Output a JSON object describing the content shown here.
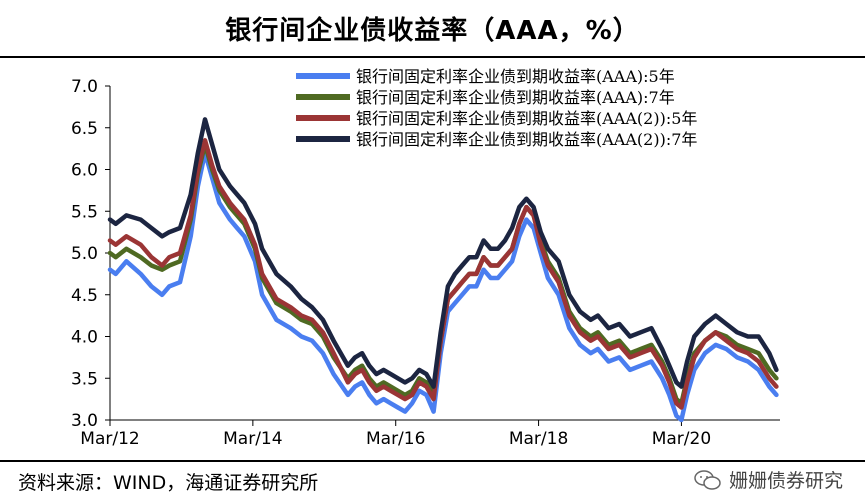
{
  "title": "银行间企业债收益率（AAA，%）",
  "source": "资料来源：WIND，海通证券研究所",
  "watermark": "姗姗债券研究",
  "chart_data": {
    "type": "line",
    "ylim": [
      3.0,
      7.0
    ],
    "yticks": [
      "7.0",
      "6.5",
      "6.0",
      "5.5",
      "5.0",
      "4.5",
      "4.0",
      "3.5",
      "3.0"
    ],
    "xticks": [
      "Mar/12",
      "Mar/14",
      "Mar/16",
      "Mar/18",
      "Mar/20"
    ],
    "xtick_positions": [
      2012.17,
      2014.17,
      2016.17,
      2018.17,
      2020.17
    ],
    "xlim": [
      2012.17,
      2021.55
    ],
    "legend_position": "top-right",
    "series": [
      {
        "name": "银行间固定利率企业债到期收益率(AAA):5年",
        "color": "#4a7ef0",
        "x": [
          2012.17,
          2012.25,
          2012.4,
          2012.6,
          2012.75,
          2012.9,
          2013.0,
          2013.15,
          2013.3,
          2013.4,
          2013.5,
          2013.6,
          2013.7,
          2013.85,
          2013.95,
          2014.05,
          2014.2,
          2014.3,
          2014.5,
          2014.7,
          2014.85,
          2015.0,
          2015.15,
          2015.3,
          2015.5,
          2015.6,
          2015.7,
          2015.8,
          2015.9,
          2016.0,
          2016.1,
          2016.2,
          2016.3,
          2016.4,
          2016.5,
          2016.6,
          2016.7,
          2016.8,
          2016.9,
          2017.0,
          2017.1,
          2017.2,
          2017.3,
          2017.4,
          2017.5,
          2017.6,
          2017.7,
          2017.8,
          2017.9,
          2018.0,
          2018.1,
          2018.2,
          2018.3,
          2018.45,
          2018.6,
          2018.75,
          2018.9,
          2019.0,
          2019.15,
          2019.3,
          2019.45,
          2019.6,
          2019.75,
          2019.9,
          2020.0,
          2020.1,
          2020.17,
          2020.25,
          2020.35,
          2020.5,
          2020.65,
          2020.8,
          2020.95,
          2021.1,
          2021.25,
          2021.4,
          2021.5
        ],
        "values": [
          4.8,
          4.75,
          4.9,
          4.75,
          4.6,
          4.5,
          4.6,
          4.65,
          5.2,
          5.8,
          6.2,
          5.9,
          5.6,
          5.4,
          5.3,
          5.2,
          4.9,
          4.5,
          4.2,
          4.1,
          4.0,
          3.95,
          3.8,
          3.55,
          3.3,
          3.4,
          3.45,
          3.3,
          3.2,
          3.25,
          3.2,
          3.15,
          3.1,
          3.2,
          3.35,
          3.3,
          3.1,
          3.8,
          4.3,
          4.4,
          4.5,
          4.6,
          4.6,
          4.8,
          4.7,
          4.7,
          4.8,
          4.9,
          5.2,
          5.4,
          5.3,
          5.0,
          4.7,
          4.5,
          4.1,
          3.9,
          3.8,
          3.85,
          3.7,
          3.75,
          3.6,
          3.65,
          3.7,
          3.5,
          3.3,
          3.05,
          3.0,
          3.3,
          3.6,
          3.8,
          3.9,
          3.85,
          3.75,
          3.7,
          3.6,
          3.4,
          3.3
        ]
      },
      {
        "name": "银行间固定利率企业债到期收益率(AAA):7年",
        "color": "#4f6a22",
        "x": [
          2012.17,
          2012.25,
          2012.4,
          2012.6,
          2012.75,
          2012.9,
          2013.0,
          2013.15,
          2013.3,
          2013.4,
          2013.5,
          2013.6,
          2013.7,
          2013.85,
          2013.95,
          2014.05,
          2014.2,
          2014.3,
          2014.5,
          2014.7,
          2014.85,
          2015.0,
          2015.15,
          2015.3,
          2015.5,
          2015.6,
          2015.7,
          2015.8,
          2015.9,
          2016.0,
          2016.1,
          2016.2,
          2016.3,
          2016.4,
          2016.5,
          2016.6,
          2016.7,
          2016.8,
          2016.9,
          2017.0,
          2017.1,
          2017.2,
          2017.3,
          2017.4,
          2017.5,
          2017.6,
          2017.7,
          2017.8,
          2017.9,
          2018.0,
          2018.1,
          2018.2,
          2018.3,
          2018.45,
          2018.6,
          2018.75,
          2018.9,
          2019.0,
          2019.15,
          2019.3,
          2019.45,
          2019.6,
          2019.75,
          2019.9,
          2020.0,
          2020.1,
          2020.17,
          2020.25,
          2020.35,
          2020.5,
          2020.65,
          2020.8,
          2020.95,
          2021.1,
          2021.25,
          2021.4,
          2021.5
        ],
        "values": [
          5.0,
          4.95,
          5.05,
          4.95,
          4.85,
          4.8,
          4.85,
          4.9,
          5.4,
          5.95,
          6.3,
          6.0,
          5.75,
          5.55,
          5.45,
          5.35,
          5.05,
          4.7,
          4.4,
          4.3,
          4.2,
          4.15,
          4.0,
          3.75,
          3.5,
          3.6,
          3.65,
          3.5,
          3.4,
          3.45,
          3.4,
          3.35,
          3.3,
          3.35,
          3.5,
          3.45,
          3.3,
          3.95,
          4.45,
          4.55,
          4.65,
          4.75,
          4.75,
          4.95,
          4.85,
          4.85,
          4.95,
          5.05,
          5.35,
          5.55,
          5.45,
          5.15,
          4.9,
          4.7,
          4.3,
          4.1,
          4.0,
          4.05,
          3.9,
          3.95,
          3.8,
          3.85,
          3.9,
          3.7,
          3.5,
          3.25,
          3.2,
          3.5,
          3.8,
          3.95,
          4.05,
          4.0,
          3.9,
          3.85,
          3.8,
          3.6,
          3.5
        ]
      },
      {
        "name": "银行间固定利率企业债到期收益率(AAA(2)):5年",
        "color": "#9b3535",
        "x": [
          2012.17,
          2012.25,
          2012.4,
          2012.6,
          2012.75,
          2012.9,
          2013.0,
          2013.15,
          2013.3,
          2013.4,
          2013.5,
          2013.6,
          2013.7,
          2013.85,
          2013.95,
          2014.05,
          2014.2,
          2014.3,
          2014.5,
          2014.7,
          2014.85,
          2015.0,
          2015.15,
          2015.3,
          2015.5,
          2015.6,
          2015.7,
          2015.8,
          2015.9,
          2016.0,
          2016.1,
          2016.2,
          2016.3,
          2016.4,
          2016.5,
          2016.6,
          2016.7,
          2016.8,
          2016.9,
          2017.0,
          2017.1,
          2017.2,
          2017.3,
          2017.4,
          2017.5,
          2017.6,
          2017.7,
          2017.8,
          2017.9,
          2018.0,
          2018.1,
          2018.2,
          2018.3,
          2018.45,
          2018.6,
          2018.75,
          2018.9,
          2019.0,
          2019.15,
          2019.3,
          2019.45,
          2019.6,
          2019.75,
          2019.9,
          2020.0,
          2020.1,
          2020.17,
          2020.25,
          2020.35,
          2020.5,
          2020.65,
          2020.8,
          2020.95,
          2021.1,
          2021.25,
          2021.4,
          2021.5
        ],
        "values": [
          5.15,
          5.1,
          5.2,
          5.1,
          4.95,
          4.85,
          4.95,
          5.0,
          5.45,
          6.0,
          6.35,
          6.05,
          5.8,
          5.6,
          5.5,
          5.4,
          5.1,
          4.75,
          4.45,
          4.35,
          4.25,
          4.2,
          4.05,
          3.8,
          3.45,
          3.55,
          3.6,
          3.45,
          3.35,
          3.4,
          3.35,
          3.3,
          3.25,
          3.3,
          3.45,
          3.4,
          3.25,
          3.95,
          4.45,
          4.55,
          4.65,
          4.75,
          4.75,
          4.95,
          4.85,
          4.85,
          4.95,
          5.05,
          5.35,
          5.55,
          5.45,
          5.1,
          4.85,
          4.65,
          4.25,
          4.05,
          3.95,
          4.0,
          3.85,
          3.9,
          3.75,
          3.8,
          3.85,
          3.65,
          3.45,
          3.2,
          3.15,
          3.45,
          3.75,
          3.95,
          4.05,
          3.95,
          3.85,
          3.8,
          3.7,
          3.5,
          3.4
        ]
      },
      {
        "name": "银行间固定利率企业债到期收益率(AAA(2)):7年",
        "color": "#1c2541",
        "x": [
          2012.17,
          2012.25,
          2012.4,
          2012.6,
          2012.75,
          2012.9,
          2013.0,
          2013.15,
          2013.3,
          2013.4,
          2013.5,
          2013.6,
          2013.7,
          2013.85,
          2013.95,
          2014.05,
          2014.2,
          2014.3,
          2014.5,
          2014.7,
          2014.85,
          2015.0,
          2015.15,
          2015.3,
          2015.5,
          2015.6,
          2015.7,
          2015.8,
          2015.9,
          2016.0,
          2016.1,
          2016.2,
          2016.3,
          2016.4,
          2016.5,
          2016.6,
          2016.7,
          2016.8,
          2016.9,
          2017.0,
          2017.1,
          2017.2,
          2017.3,
          2017.4,
          2017.5,
          2017.6,
          2017.7,
          2017.8,
          2017.9,
          2018.0,
          2018.1,
          2018.2,
          2018.3,
          2018.45,
          2018.6,
          2018.75,
          2018.9,
          2019.0,
          2019.15,
          2019.3,
          2019.45,
          2019.6,
          2019.75,
          2019.9,
          2020.0,
          2020.1,
          2020.17,
          2020.25,
          2020.35,
          2020.5,
          2020.65,
          2020.8,
          2020.95,
          2021.1,
          2021.25,
          2021.4,
          2021.5
        ],
        "values": [
          5.4,
          5.35,
          5.45,
          5.4,
          5.3,
          5.2,
          5.25,
          5.3,
          5.7,
          6.2,
          6.6,
          6.3,
          6.0,
          5.8,
          5.7,
          5.6,
          5.35,
          5.05,
          4.75,
          4.6,
          4.45,
          4.35,
          4.2,
          3.95,
          3.65,
          3.75,
          3.8,
          3.65,
          3.55,
          3.6,
          3.55,
          3.5,
          3.45,
          3.5,
          3.6,
          3.55,
          3.4,
          4.05,
          4.6,
          4.75,
          4.85,
          4.95,
          4.95,
          5.15,
          5.05,
          5.05,
          5.15,
          5.3,
          5.55,
          5.65,
          5.55,
          5.25,
          5.05,
          4.9,
          4.5,
          4.3,
          4.2,
          4.25,
          4.1,
          4.15,
          4.0,
          4.05,
          4.1,
          3.85,
          3.65,
          3.45,
          3.4,
          3.7,
          4.0,
          4.15,
          4.25,
          4.15,
          4.05,
          4.0,
          4.0,
          3.8,
          3.6
        ]
      }
    ]
  }
}
